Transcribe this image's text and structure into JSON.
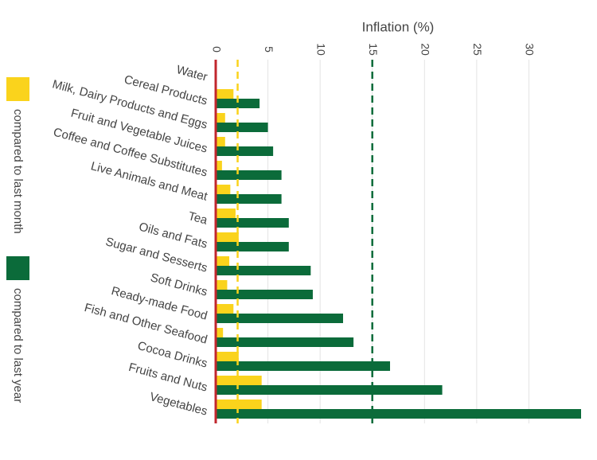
{
  "chart_data": {
    "type": "hbar",
    "x_label": "Inflation (%)",
    "categories": [
      "Water",
      "Cereal Products",
      "Milk, Dairy Products and Eggs",
      "Fruit and Vegetable Juices",
      "Coffee and Coffee Substitutes",
      "Live Animals and Meat",
      "Tea",
      "Oils and Fats",
      "Sugar and Sesserts",
      "Soft Drinks",
      "Ready-made Food",
      "Fish and Other Seafood",
      "Cocoa Drinks",
      "Fruits and Nuts",
      "Vegetables"
    ],
    "series": [
      {
        "name": "compared to last month",
        "color": "#fad31c",
        "values": [
          0,
          1.7,
          0.9,
          0.9,
          0.6,
          1.4,
          1.9,
          2.2,
          1.3,
          1.1,
          1.7,
          0.7,
          2.2,
          4.4,
          4.4
        ]
      },
      {
        "name": "compared to last year",
        "color": "#0b6b3a",
        "values": [
          0,
          4.2,
          5.0,
          5.5,
          6.3,
          6.3,
          7.0,
          7.0,
          9.1,
          9.3,
          12.2,
          13.2,
          16.7,
          21.7,
          35
        ]
      }
    ],
    "reference_lines": [
      {
        "value": 2.1,
        "color": "#fad31c"
      },
      {
        "value": 15,
        "color": "#0b6b3a"
      }
    ],
    "xlim": [
      0,
      35
    ],
    "xticks": [
      0,
      5,
      10,
      15,
      20,
      25,
      30
    ],
    "grid": true,
    "legend": "left"
  }
}
